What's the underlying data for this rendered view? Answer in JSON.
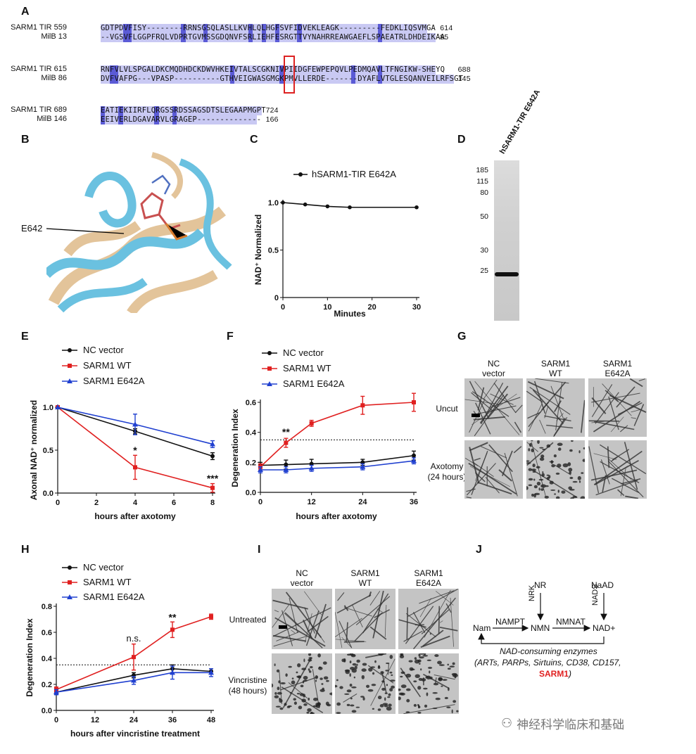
{
  "panels": {
    "A": "A",
    "B": "B",
    "C": "C",
    "D": "D",
    "E": "E",
    "F": "F",
    "G": "G",
    "H": "H",
    "I": "I",
    "J": "J"
  },
  "alignment": {
    "blocks": [
      {
        "top_name": "SARM1 TIR",
        "top_start": "559",
        "top_seq": "GDTPDVFISY--------RRNSGSQLASLLKVHLQLHGFSVFIDVEKLEAGK---------FEDKLIQSVMGA",
        "top_end": "614",
        "bot_name": "MilB",
        "bot_start": "13",
        "bot_seq": "--VGSVFLGGPFRQLVDPRTGVMSSGDQNVFSRLIEHFESRGTTVYNAHRREAWGAEFLSPAEATRLDHDEIKAA",
        "bot_end": "85"
      },
      {
        "top_name": "SARM1 TIR",
        "top_start": "615",
        "top_seq": "RNFVLVLSPGALDKCMQDHDCKDWVHKEIVTALSCGKNIVPIIDGFEWPEPQVLPEDMQAVLTFNGIKW-SHEYQ",
        "top_end": "688",
        "bot_name": "MilB",
        "bot_start": "86",
        "bot_seq": "DVFVAFPG---VPASP----------GTHVEIGWASGMGKPMVLLERDE-------DYAFLVTGLESQANVEILRFSGT",
        "bot_end": "145"
      },
      {
        "top_name": "SARM1 TIR",
        "top_start": "689",
        "top_seq": "EATIEKIIRFLQRGSSRDSSAGSDTSLEGAAPMGPT",
        "top_end": "724",
        "bot_name": "MilB",
        "bot_start": "146",
        "bot_seq": "EEIVERLDGAVARVLGRAGEP--------------",
        "bot_end": "166"
      }
    ]
  },
  "panelB": {
    "label": "E642"
  },
  "panelC": {
    "legend": "hSARM1-TIR E642A",
    "ylabel": "NAD⁺ Normalized",
    "xlabel": "Minutes"
  },
  "panelD": {
    "lane_label": "hSARM1-TIR E642A",
    "markers": [
      "185",
      "115",
      "80",
      "50",
      "30",
      "25"
    ]
  },
  "panelE": {
    "legend": [
      "NC vector",
      "SARM1 WT",
      "SARM1 E642A"
    ],
    "ylabel": "Axonal NAD⁺ normalized",
    "xlabel": "hours after axotomy",
    "annotations": [
      "*",
      "***"
    ]
  },
  "panelF": {
    "legend": [
      "NC vector",
      "SARM1 WT",
      "SARM1 E642A"
    ],
    "ylabel": "Degeneration Index",
    "xlabel": "hours after axotomy",
    "annotations": [
      "**"
    ]
  },
  "panelG": {
    "cols": [
      "NC vector",
      "SARM1 WT",
      "SARM1 E642A"
    ],
    "rows": [
      "Uncut",
      "Axotomy (24 hours)"
    ]
  },
  "panelH": {
    "legend": [
      "NC vector",
      "SARM1 WT",
      "SARM1 E642A"
    ],
    "ylabel": "Degeneration Index",
    "xlabel": "hours after vincristine treatment",
    "annotations": [
      "n.s.",
      "**"
    ]
  },
  "panelI": {
    "cols": [
      "NC vector",
      "SARM1 WT",
      "SARM1 E642A"
    ],
    "rows": [
      "Untreated",
      "Vincristine (48 hours)"
    ]
  },
  "panelJ": {
    "nodes": {
      "nam": "Nam",
      "nmn": "NMN",
      "nad": "NAD+",
      "nr": "NR",
      "naad": "NaAD"
    },
    "enzymes": {
      "nampt": "NAMPT",
      "nmnat": "NMNAT",
      "nrk": "NRK",
      "nads": "NADS"
    },
    "consuming_title": "NAD-consuming enzymes",
    "consuming_list": "(ARTs, PARPs, Sirtuins, CD38, CD157,",
    "consuming_sarm1": "SARM1",
    "consuming_close": ")"
  },
  "watermark": "神经科学临床和基础",
  "colors": {
    "black": "#111111",
    "red": "#e02020",
    "blue": "#2040d0",
    "align_light": "#c9c9f3",
    "align_dark": "#5b5bd6"
  },
  "chart_data": [
    {
      "id": "C",
      "type": "line",
      "xlim": [
        0,
        30
      ],
      "ylim": [
        0,
        1.0
      ],
      "xticks": [
        0,
        10,
        20,
        30
      ],
      "yticks": [
        0,
        0.5,
        1.0
      ],
      "series": [
        {
          "name": "hSARM1-TIR E642A",
          "x": [
            0,
            5,
            10,
            15,
            30
          ],
          "y": [
            1.0,
            0.98,
            0.96,
            0.95,
            0.95
          ]
        }
      ]
    },
    {
      "id": "E",
      "type": "line",
      "xlim": [
        0,
        8
      ],
      "ylim": [
        0,
        1.0
      ],
      "xticks": [
        0,
        2,
        4,
        6,
        8
      ],
      "yticks": [
        0.0,
        0.5,
        1.0
      ],
      "series": [
        {
          "name": "NC vector",
          "x": [
            0,
            4,
            8
          ],
          "y": [
            1.0,
            0.72,
            0.43
          ],
          "err": [
            0,
            0.03,
            0.04
          ]
        },
        {
          "name": "SARM1 WT",
          "x": [
            0,
            4,
            8
          ],
          "y": [
            1.0,
            0.3,
            0.06
          ],
          "err": [
            0,
            0.14,
            0.05
          ]
        },
        {
          "name": "SARM1 E642A",
          "x": [
            0,
            4,
            8
          ],
          "y": [
            1.0,
            0.8,
            0.57
          ],
          "err": [
            0,
            0.12,
            0.04
          ]
        }
      ]
    },
    {
      "id": "F",
      "type": "line",
      "xlim": [
        0,
        36
      ],
      "ylim": [
        0,
        0.6
      ],
      "xticks": [
        0,
        12,
        24,
        36
      ],
      "yticks": [
        0.0,
        0.2,
        0.4,
        0.6
      ],
      "threshold": 0.35,
      "series": [
        {
          "name": "NC vector",
          "x": [
            0,
            6,
            12,
            24,
            36
          ],
          "y": [
            0.18,
            0.185,
            0.19,
            0.2,
            0.245
          ],
          "err": [
            0.02,
            0.03,
            0.03,
            0.02,
            0.03
          ]
        },
        {
          "name": "SARM1 WT",
          "x": [
            0,
            6,
            12,
            24,
            36
          ],
          "y": [
            0.17,
            0.33,
            0.46,
            0.58,
            0.6
          ],
          "err": [
            0.02,
            0.03,
            0.02,
            0.06,
            0.06
          ]
        },
        {
          "name": "SARM1 E642A",
          "x": [
            0,
            6,
            12,
            24,
            36
          ],
          "y": [
            0.15,
            0.15,
            0.16,
            0.17,
            0.21
          ],
          "err": [
            0.02,
            0.02,
            0.02,
            0.02,
            0.02
          ]
        }
      ]
    },
    {
      "id": "H",
      "type": "line",
      "xlim": [
        0,
        48
      ],
      "ylim": [
        0,
        0.8
      ],
      "xticks": [
        0,
        12,
        24,
        36,
        48
      ],
      "yticks": [
        0.0,
        0.2,
        0.4,
        0.6,
        0.8
      ],
      "threshold": 0.35,
      "series": [
        {
          "name": "NC vector",
          "x": [
            0,
            24,
            36,
            48
          ],
          "y": [
            0.14,
            0.27,
            0.32,
            0.3
          ],
          "err": [
            0.02,
            0.02,
            0.03,
            0.02
          ]
        },
        {
          "name": "SARM1 WT",
          "x": [
            0,
            24,
            36,
            48
          ],
          "y": [
            0.16,
            0.41,
            0.62,
            0.72
          ],
          "err": [
            0.02,
            0.1,
            0.06,
            0.02
          ]
        },
        {
          "name": "SARM1 E642A",
          "x": [
            0,
            24,
            36,
            48
          ],
          "y": [
            0.14,
            0.23,
            0.29,
            0.29
          ],
          "err": [
            0.02,
            0.03,
            0.05,
            0.03
          ]
        }
      ]
    }
  ]
}
